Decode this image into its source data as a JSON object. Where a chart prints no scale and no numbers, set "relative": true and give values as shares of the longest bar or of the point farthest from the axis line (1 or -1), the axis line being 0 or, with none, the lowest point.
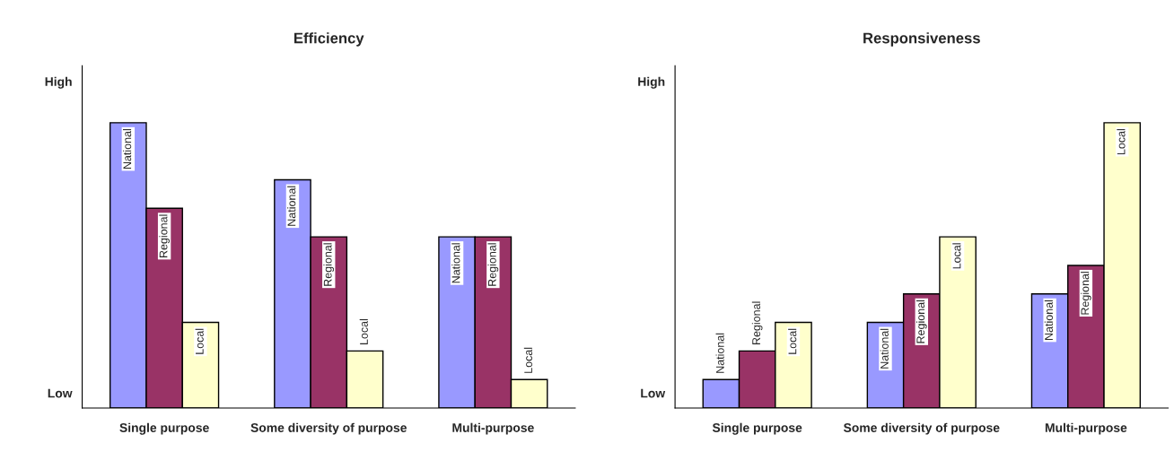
{
  "chart_data": [
    {
      "type": "bar",
      "title": "Efficiency",
      "categories": [
        "Single purpose",
        "Some diversity of purpose",
        "Multi-purpose"
      ],
      "relative": true,
      "annotations": [
        "High",
        "Low"
      ],
      "series": [
        {
          "name": "National",
          "color": "#9999ff",
          "values": [
            1,
            0.8,
            0.6
          ]
        },
        {
          "name": "Regional",
          "color": "#993366",
          "values": [
            0.7,
            0.6,
            0.6
          ]
        },
        {
          "name": "Local",
          "color": "#ffffcc",
          "values": [
            0.3,
            0.2,
            0.1
          ]
        }
      ]
    },
    {
      "type": "bar",
      "title": "Responsiveness",
      "categories": [
        "Single purpose",
        "Some diversity of purpose",
        "Multi-purpose"
      ],
      "relative": true,
      "annotations": [
        "High",
        "Low"
      ],
      "series": [
        {
          "name": "National",
          "color": "#9999ff",
          "values": [
            0.1,
            0.3,
            0.4
          ]
        },
        {
          "name": "Regional",
          "color": "#993366",
          "values": [
            0.2,
            0.4,
            0.5
          ]
        },
        {
          "name": "Local",
          "color": "#ffffcc",
          "values": [
            0.3,
            0.6,
            1
          ]
        }
      ]
    }
  ]
}
